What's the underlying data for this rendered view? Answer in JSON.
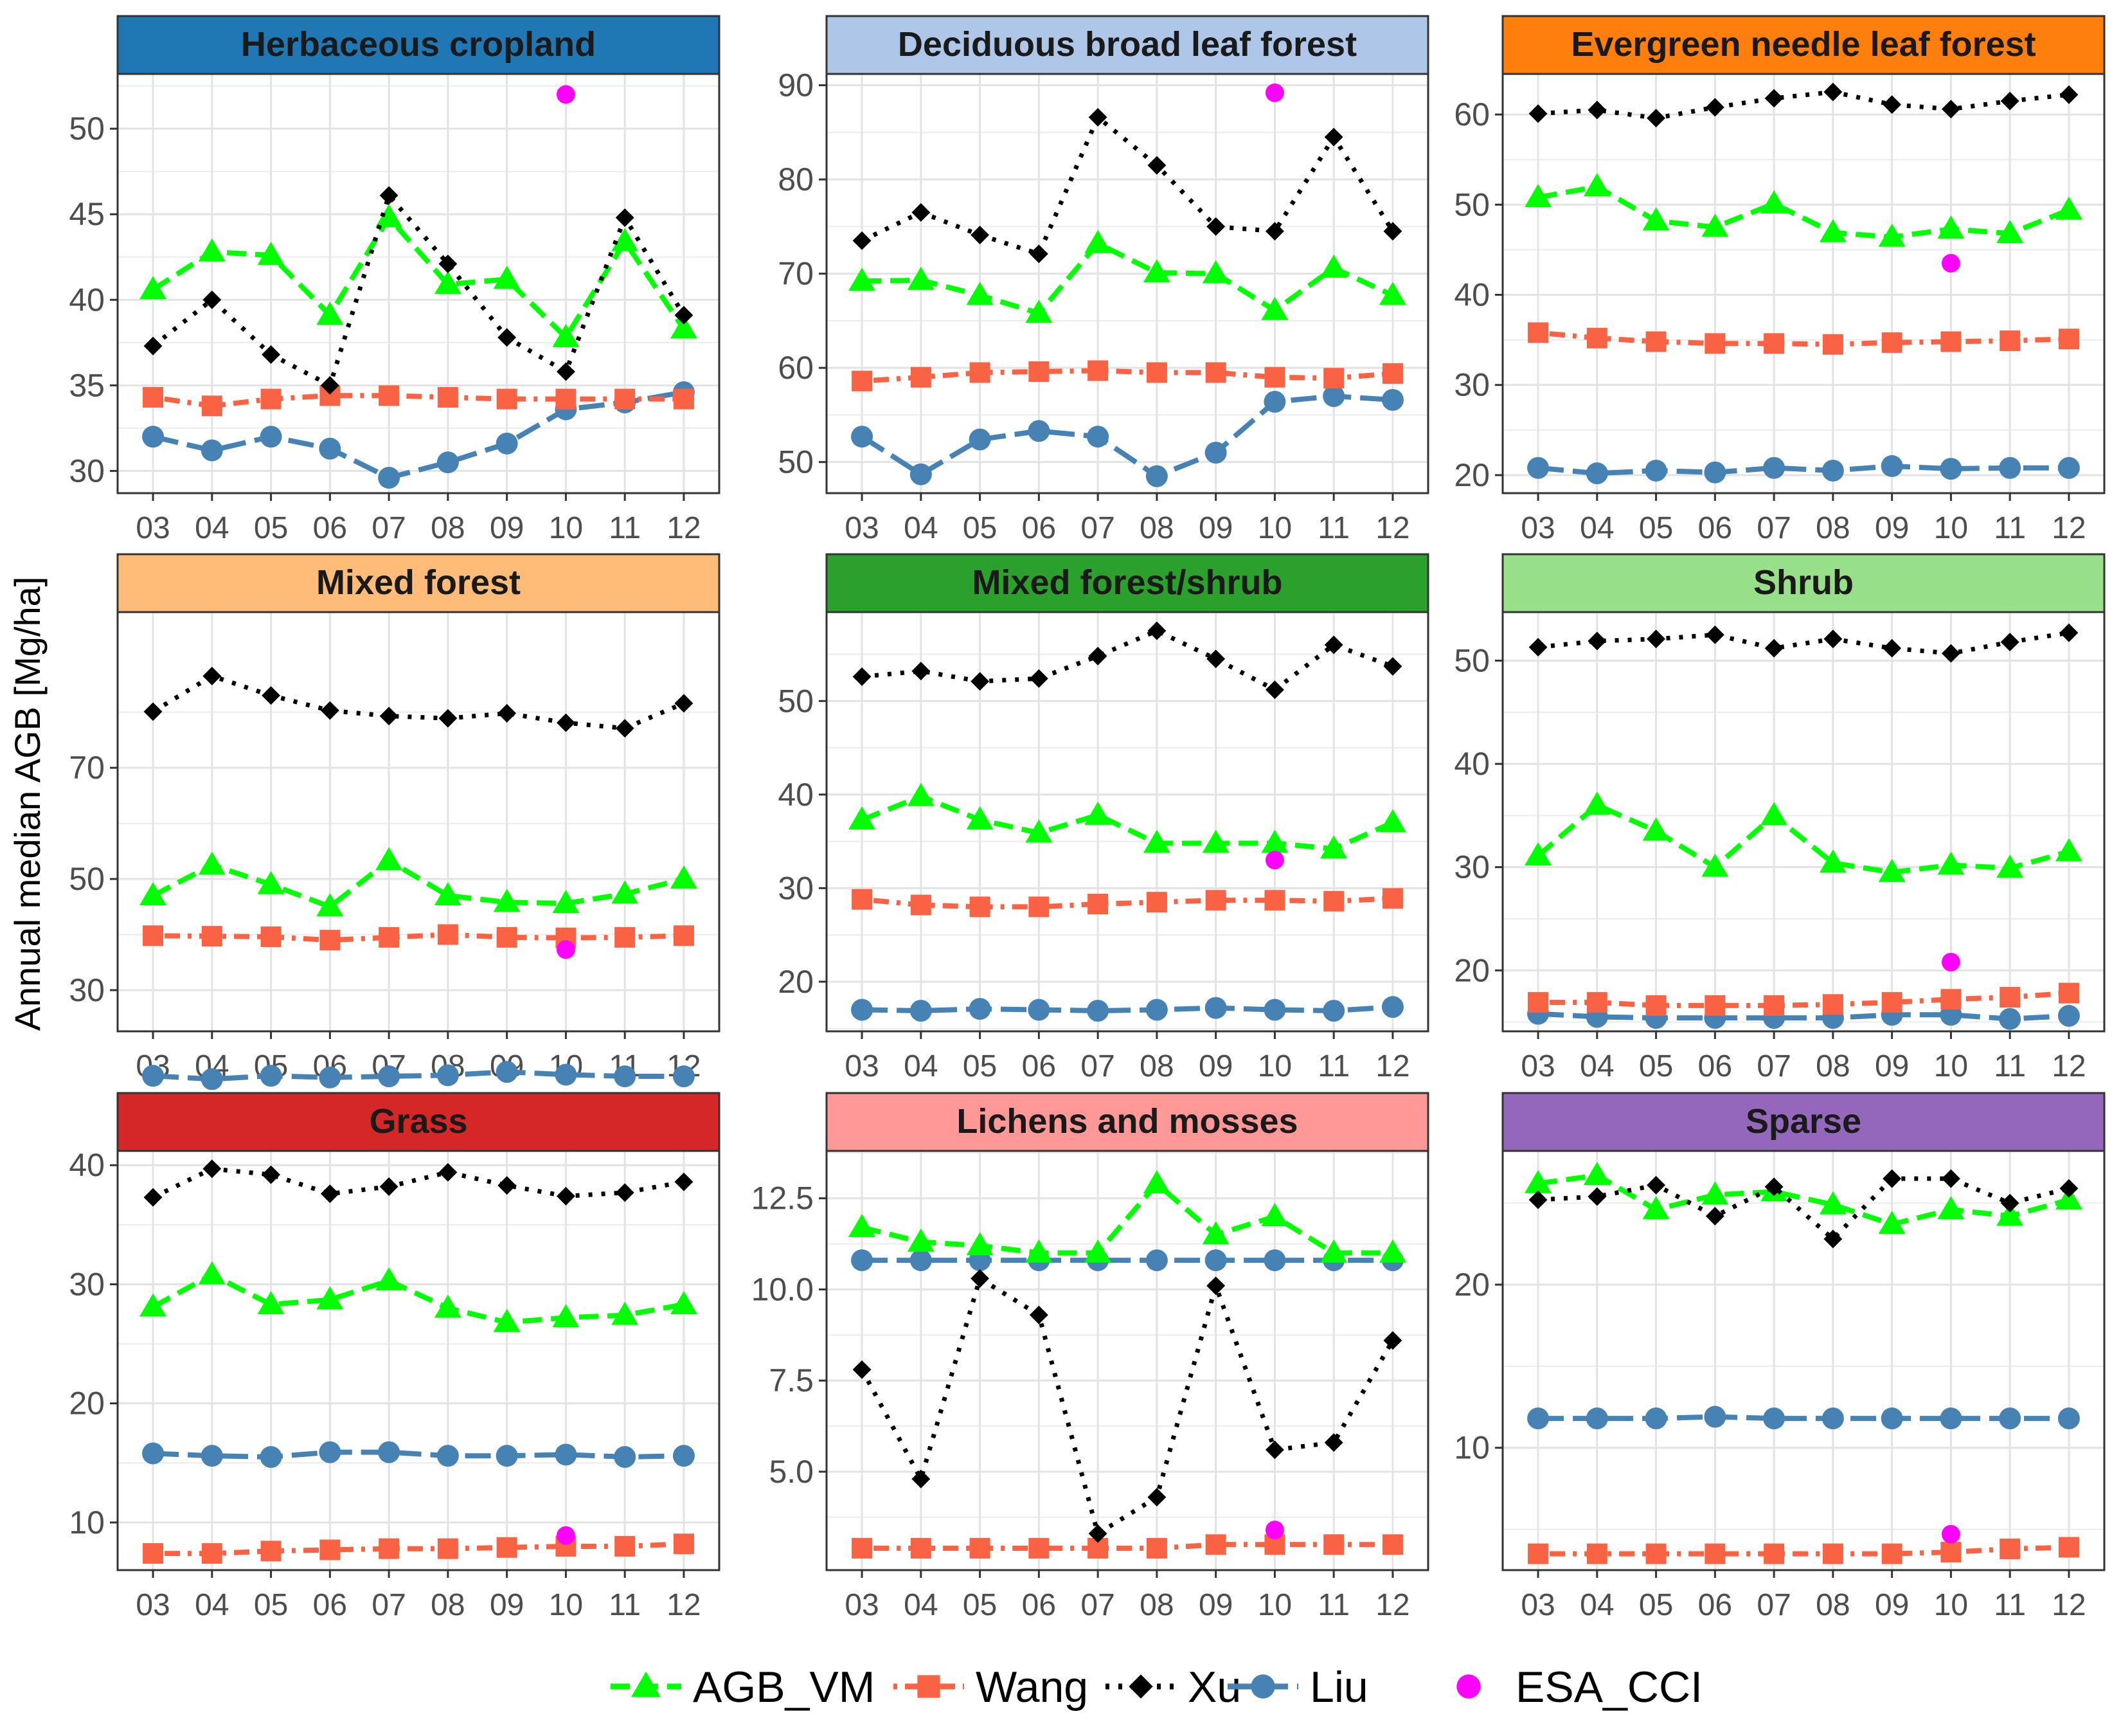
{
  "ylabel": "Annual median AGB [Mg/ha]",
  "chart_data": {
    "type": "line",
    "x": [
      "03",
      "04",
      "05",
      "06",
      "07",
      "08",
      "09",
      "10",
      "11",
      "12"
    ],
    "ylabel": "Annual median AGB [Mg/ha]",
    "grid": true,
    "legend_position": "bottom",
    "series_styles": [
      {
        "name": "AGB_VM",
        "color": "#00ff00",
        "marker": "triangle",
        "line": "dashed"
      },
      {
        "name": "Wang",
        "color": "#fa6244",
        "marker": "square",
        "line": "dotdash"
      },
      {
        "name": "Xu",
        "color": "#000000",
        "marker": "diamond",
        "line": "dotted"
      },
      {
        "name": "Liu",
        "color": "#4682b4",
        "marker": "circle",
        "line": "longdash"
      },
      {
        "name": "ESA_CCI",
        "color": "#ff00ff",
        "marker": "circle",
        "line": "none"
      }
    ],
    "panels": [
      {
        "title": "Herbaceous cropland",
        "strip_color": "#1f77b4",
        "ylim": [
          28.7,
          53.2
        ],
        "yticks": [
          30,
          35,
          40,
          45,
          50
        ],
        "ytick_labels": [
          "30",
          "35",
          "40",
          "45",
          "50"
        ],
        "series": [
          {
            "name": "AGB_VM",
            "values": [
              40.6,
              42.8,
              42.6,
              39.1,
              44.8,
              40.9,
              41.2,
              37.8,
              43.4,
              38.3
            ]
          },
          {
            "name": "Wang",
            "values": [
              34.3,
              33.8,
              34.2,
              34.4,
              34.4,
              34.3,
              34.2,
              34.2,
              34.2,
              34.2
            ]
          },
          {
            "name": "Xu",
            "values": [
              37.3,
              40.0,
              36.8,
              35.0,
              46.1,
              42.1,
              37.8,
              35.8,
              44.8,
              39.1
            ]
          },
          {
            "name": "Liu",
            "values": [
              32.0,
              31.2,
              32.0,
              31.3,
              29.6,
              30.5,
              31.6,
              33.6,
              34.0,
              34.6
            ]
          },
          {
            "name": "ESA_CCI",
            "values": [
              null,
              null,
              null,
              null,
              null,
              null,
              null,
              52.0,
              null,
              null
            ]
          }
        ]
      },
      {
        "title": "Deciduous broad leaf forest",
        "strip_color": "#aec7e8",
        "ylim": [
          46.7,
          91.2
        ],
        "yticks": [
          50,
          60,
          70,
          80,
          90
        ],
        "ytick_labels": [
          "50",
          "60",
          "70",
          "80",
          "90"
        ],
        "series": [
          {
            "name": "AGB_VM",
            "values": [
              69.2,
              69.3,
              67.7,
              65.8,
              73.2,
              70.1,
              70.0,
              66.1,
              70.6,
              67.7
            ]
          },
          {
            "name": "Wang",
            "values": [
              58.6,
              59.0,
              59.5,
              59.6,
              59.7,
              59.5,
              59.5,
              59.0,
              58.9,
              59.4
            ]
          },
          {
            "name": "Xu",
            "values": [
              73.5,
              76.5,
              74.1,
              72.1,
              86.6,
              81.5,
              75.0,
              74.5,
              84.5,
              74.5
            ]
          },
          {
            "name": "Liu",
            "values": [
              52.7,
              48.7,
              52.4,
              53.3,
              52.7,
              48.5,
              51.0,
              56.4,
              57.0,
              56.6
            ]
          },
          {
            "name": "ESA_CCI",
            "values": [
              null,
              null,
              null,
              null,
              null,
              null,
              null,
              89.2,
              null,
              null
            ]
          }
        ]
      },
      {
        "title": "Evergreen needle leaf forest",
        "strip_color": "#ff7f0e",
        "ylim": [
          18.0,
          64.5
        ],
        "yticks": [
          20,
          30,
          40,
          50,
          60
        ],
        "ytick_labels": [
          "20",
          "30",
          "40",
          "50",
          "60"
        ],
        "series": [
          {
            "name": "AGB_VM",
            "values": [
              50.8,
              52.0,
              48.2,
              47.5,
              50.1,
              46.9,
              46.4,
              47.3,
              46.8,
              49.4
            ]
          },
          {
            "name": "Wang",
            "values": [
              35.8,
              35.2,
              34.8,
              34.6,
              34.6,
              34.5,
              34.7,
              34.8,
              34.9,
              35.1
            ]
          },
          {
            "name": "Xu",
            "values": [
              60.1,
              60.5,
              59.6,
              60.8,
              61.8,
              62.5,
              61.1,
              60.6,
              61.5,
              62.2
            ]
          },
          {
            "name": "Liu",
            "values": [
              20.8,
              20.2,
              20.5,
              20.3,
              20.8,
              20.5,
              21.0,
              20.7,
              20.8,
              20.8
            ]
          },
          {
            "name": "ESA_CCI",
            "values": [
              null,
              null,
              null,
              null,
              null,
              null,
              null,
              43.5,
              null,
              null
            ]
          }
        ]
      },
      {
        "title": "Mixed forest",
        "strip_color": "#ffbb78",
        "ylim": [
          22.6,
          98.0
        ],
        "yticks": [
          30,
          50,
          70
        ],
        "ytick_labels": [
          "30",
          "50",
          "70"
        ],
        "series": [
          {
            "name": "AGB_VM",
            "values": [
              47.0,
              52.5,
              49.0,
              45.0,
              53.3,
              47.0,
              45.8,
              45.6,
              47.3,
              50.0
            ]
          },
          {
            "name": "Wang",
            "values": [
              39.8,
              39.7,
              39.6,
              39.0,
              39.5,
              40.0,
              39.5,
              39.4,
              39.5,
              39.8
            ]
          },
          {
            "name": "Xu",
            "values": [
              80.1,
              86.5,
              83.0,
              80.3,
              79.3,
              78.9,
              79.8,
              78.1,
              77.1,
              81.6
            ]
          },
          {
            "name": "Liu",
            "values": [
              14.6,
              14.0,
              14.6,
              14.3,
              14.5,
              14.7,
              15.3,
              14.8,
              14.5,
              14.5
            ]
          },
          {
            "name": "ESA_CCI",
            "values": [
              null,
              null,
              null,
              null,
              null,
              null,
              null,
              37.3,
              null,
              null
            ]
          }
        ]
      },
      {
        "title": "Mixed forest/shrub",
        "strip_color": "#2ca02c",
        "ylim": [
          14.7,
          59.5
        ],
        "yticks": [
          20,
          30,
          40,
          50
        ],
        "ytick_labels": [
          "20",
          "30",
          "40",
          "50"
        ],
        "series": [
          {
            "name": "AGB_VM",
            "values": [
              37.3,
              39.8,
              37.3,
              35.9,
              37.8,
              34.8,
              34.8,
              34.8,
              34.2,
              37.0
            ]
          },
          {
            "name": "Wang",
            "values": [
              28.8,
              28.2,
              28.0,
              28.0,
              28.3,
              28.5,
              28.7,
              28.7,
              28.6,
              28.9
            ]
          },
          {
            "name": "Xu",
            "values": [
              52.6,
              53.2,
              52.1,
              52.4,
              54.8,
              57.5,
              54.5,
              51.2,
              56.0,
              53.7
            ]
          },
          {
            "name": "Liu",
            "values": [
              17.0,
              16.9,
              17.1,
              17.0,
              16.9,
              17.0,
              17.2,
              17.0,
              16.9,
              17.3
            ]
          },
          {
            "name": "ESA_CCI",
            "values": [
              null,
              null,
              null,
              null,
              null,
              null,
              null,
              33.0,
              null,
              null
            ]
          }
        ]
      },
      {
        "title": "Shrub",
        "strip_color": "#98df8a",
        "ylim": [
          14.1,
          54.7
        ],
        "yticks": [
          20,
          30,
          40,
          50
        ],
        "ytick_labels": [
          "20",
          "30",
          "40",
          "50"
        ],
        "series": [
          {
            "name": "AGB_VM",
            "values": [
              31.1,
              36.0,
              33.5,
              30.0,
              35.0,
              30.4,
              29.5,
              30.2,
              29.9,
              31.5
            ]
          },
          {
            "name": "Wang",
            "values": [
              16.9,
              16.9,
              16.6,
              16.6,
              16.6,
              16.7,
              16.9,
              17.2,
              17.4,
              17.8
            ]
          },
          {
            "name": "Xu",
            "values": [
              51.3,
              51.9,
              52.1,
              52.5,
              51.2,
              52.1,
              51.2,
              50.7,
              51.8,
              52.7
            ]
          },
          {
            "name": "Liu",
            "values": [
              15.8,
              15.5,
              15.4,
              15.4,
              15.4,
              15.4,
              15.7,
              15.7,
              15.3,
              15.6
            ]
          },
          {
            "name": "ESA_CCI",
            "values": [
              null,
              null,
              null,
              null,
              null,
              null,
              null,
              20.8,
              null,
              null
            ]
          }
        ]
      },
      {
        "title": "Grass",
        "strip_color": "#d62728",
        "ylim": [
          6.0,
          41.2
        ],
        "yticks": [
          10,
          20,
          30,
          40
        ],
        "ytick_labels": [
          "10",
          "20",
          "30",
          "40"
        ],
        "series": [
          {
            "name": "AGB_VM",
            "values": [
              28.1,
              30.8,
              28.3,
              28.7,
              30.3,
              28.0,
              26.8,
              27.2,
              27.4,
              28.3
            ]
          },
          {
            "name": "Wang",
            "values": [
              7.4,
              7.4,
              7.6,
              7.7,
              7.8,
              7.8,
              7.9,
              8.0,
              8.0,
              8.2
            ]
          },
          {
            "name": "Xu",
            "values": [
              37.3,
              39.7,
              39.2,
              37.6,
              38.2,
              39.4,
              38.3,
              37.4,
              37.7,
              38.6
            ]
          },
          {
            "name": "Liu",
            "values": [
              15.8,
              15.6,
              15.5,
              15.9,
              15.9,
              15.6,
              15.6,
              15.7,
              15.5,
              15.6
            ]
          },
          {
            "name": "ESA_CCI",
            "values": [
              null,
              null,
              null,
              null,
              null,
              null,
              null,
              8.9,
              null,
              null
            ]
          }
        ]
      },
      {
        "title": "Lichens and mosses",
        "strip_color": "#ff9896",
        "ylim": [
          2.3,
          13.8
        ],
        "yticks": [
          5.0,
          7.5,
          10.0,
          12.5
        ],
        "ytick_labels": [
          "5.0",
          "7.5",
          "10.0",
          "12.5"
        ],
        "series": [
          {
            "name": "AGB_VM",
            "values": [
              11.7,
              11.3,
              11.2,
              11.0,
              11.0,
              12.9,
              11.5,
              12.0,
              11.0,
              11.0
            ]
          },
          {
            "name": "Wang",
            "values": [
              2.9,
              2.9,
              2.9,
              2.9,
              2.9,
              2.9,
              3.0,
              3.0,
              3.0,
              3.0
            ]
          },
          {
            "name": "Xu",
            "values": [
              7.8,
              4.8,
              10.3,
              9.3,
              3.3,
              4.3,
              10.1,
              5.6,
              5.8,
              8.6
            ]
          },
          {
            "name": "Liu",
            "values": [
              10.8,
              10.8,
              10.8,
              10.8,
              10.8,
              10.8,
              10.8,
              10.8,
              10.8,
              10.8
            ]
          },
          {
            "name": "ESA_CCI",
            "values": [
              null,
              null,
              null,
              null,
              null,
              null,
              null,
              3.4,
              null,
              null
            ]
          }
        ]
      },
      {
        "title": "Sparse",
        "strip_color": "#9467bd",
        "ylim": [
          2.5,
          28.2
        ],
        "yticks": [
          10,
          20
        ],
        "ytick_labels": [
          "10",
          "20"
        ],
        "series": [
          {
            "name": "AGB_VM",
            "values": [
              26.2,
              26.7,
              24.6,
              25.5,
              25.7,
              24.9,
              23.7,
              24.6,
              24.2,
              25.2
            ]
          },
          {
            "name": "Wang",
            "values": [
              3.5,
              3.5,
              3.5,
              3.5,
              3.5,
              3.5,
              3.5,
              3.6,
              3.8,
              3.9
            ]
          },
          {
            "name": "Xu",
            "values": [
              25.2,
              25.4,
              26.1,
              24.2,
              26.0,
              22.8,
              26.5,
              26.5,
              25.0,
              25.9
            ]
          },
          {
            "name": "Liu",
            "values": [
              11.8,
              11.8,
              11.8,
              11.9,
              11.8,
              11.8,
              11.8,
              11.8,
              11.8,
              11.8
            ]
          },
          {
            "name": "ESA_CCI",
            "values": [
              null,
              null,
              null,
              null,
              null,
              null,
              null,
              4.7,
              null,
              null
            ]
          }
        ]
      }
    ]
  }
}
